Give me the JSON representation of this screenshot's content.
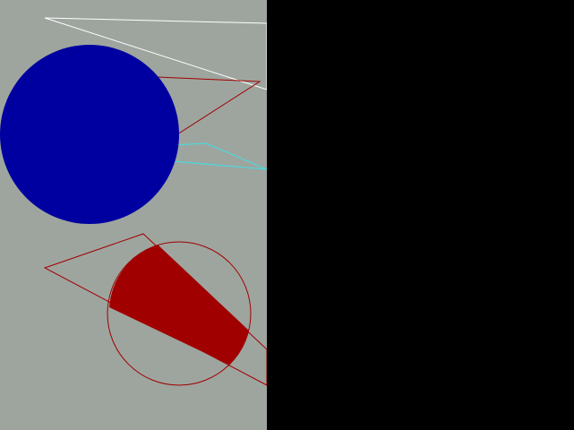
{
  "scene": {
    "colors": {
      "canvas_background": "#9EA59F",
      "outside_background": "#000000",
      "white_line": "#FFFFFF",
      "blue_fill": "#0000A0",
      "dark_red": "#A00000",
      "cyan_line": "#3FE0E6"
    },
    "shapes": [
      {
        "kind": "polyline",
        "name": "white-line-shape",
        "color_key": "white_line"
      },
      {
        "kind": "polygon",
        "name": "red-outline-triangle-top",
        "color_key": "dark_red"
      },
      {
        "kind": "polygon",
        "name": "cyan-outline-triangle",
        "color_key": "cyan_line"
      },
      {
        "kind": "circle",
        "name": "blue-filled-circle",
        "color_key": "blue_fill"
      },
      {
        "kind": "circle-outline",
        "name": "red-outline-circle",
        "color_key": "dark_red"
      },
      {
        "kind": "sector",
        "name": "red-filled-segment",
        "color_key": "dark_red"
      },
      {
        "kind": "polygon",
        "name": "red-outline-triangle-bottom",
        "color_key": "dark_red"
      }
    ]
  }
}
